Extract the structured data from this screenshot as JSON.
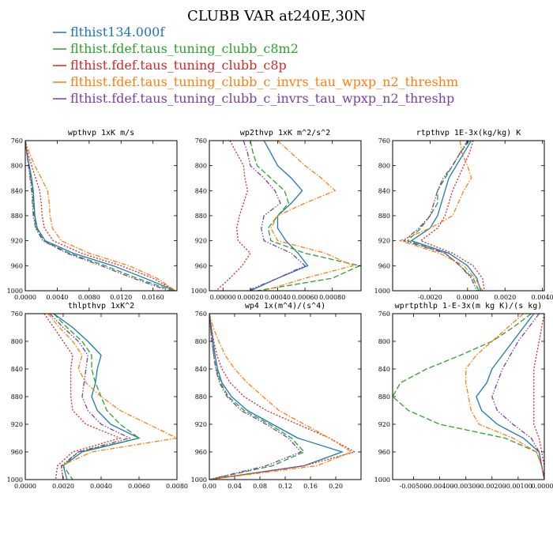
{
  "figure": {
    "title": "CLUBB VAR at240E,30N",
    "legend": [
      {
        "name": "flthist134.000f",
        "color": "#1f77b4",
        "dash": "solid"
      },
      {
        "name": "flthist.fdef.taus_tuning_clubb_c8m2",
        "color": "#2ca02c",
        "dash": "longdash"
      },
      {
        "name": "flthist.fdef.taus_tuning_clubb_c8p",
        "color": "#d62728",
        "dash": "dot"
      },
      {
        "name": "flthist.fdef.taus_tuning_clubb_c_invrs_tau_wpxp_n2_threshm",
        "color": "#ff7f0e",
        "dash": "dashdot"
      },
      {
        "name": "flthist.fdef.taus_tuning_clubb_c_invrs_tau_wpxp_n2_threshp",
        "color": "#7b3fa0",
        "dash": "dashdotdot"
      }
    ]
  },
  "chart_data": [
    {
      "type": "line",
      "title": "wpthvp 1xK m/s",
      "y_axis": "pressure",
      "ylim": [
        1000,
        760
      ],
      "yticks": [
        760,
        800,
        840,
        880,
        920,
        960,
        1000
      ],
      "xlim": [
        0,
        0.019
      ],
      "xticks": [
        0,
        0.004,
        0.008,
        0.012,
        0.016
      ],
      "xtick_labels": [
        "0.0000",
        "0.0040",
        "0.0080",
        "0.0120",
        "0.0160"
      ],
      "y": [
        760,
        780,
        800,
        820,
        840,
        860,
        880,
        900,
        920,
        940,
        960,
        980,
        1000
      ],
      "series": [
        {
          "name": "flthist134.000f",
          "values": [
            0.0,
            0.0002,
            0.0005,
            0.0008,
            0.001,
            0.0011,
            0.0012,
            0.0015,
            0.0025,
            0.006,
            0.011,
            0.015,
            0.0188
          ]
        },
        {
          "name": "flthist.fdef.taus_tuning_clubb_c8m2",
          "values": [
            0.0,
            0.0002,
            0.0004,
            0.0007,
            0.0009,
            0.001,
            0.0011,
            0.0014,
            0.0023,
            0.0055,
            0.01,
            0.014,
            0.0185
          ]
        },
        {
          "name": "flthist.fdef.taus_tuning_clubb_c8p",
          "values": [
            0.0,
            0.0003,
            0.0008,
            0.0013,
            0.0018,
            0.002,
            0.0021,
            0.0024,
            0.0035,
            0.007,
            0.012,
            0.016,
            0.0188
          ]
        },
        {
          "name": "flthist.fdef.taus_tuning_clubb_c_invrs_tau_wpxp_n2_threshm",
          "values": [
            0.0,
            0.0005,
            0.0012,
            0.002,
            0.0028,
            0.003,
            0.0031,
            0.0034,
            0.0045,
            0.008,
            0.013,
            0.0165,
            0.0188
          ]
        },
        {
          "name": "flthist.fdef.taus_tuning_clubb_c_invrs_tau_wpxp_n2_threshp",
          "values": [
            0.0,
            0.0002,
            0.0004,
            0.0006,
            0.0008,
            0.0009,
            0.001,
            0.0013,
            0.0022,
            0.0052,
            0.0095,
            0.0135,
            0.018
          ]
        }
      ]
    },
    {
      "type": "line",
      "title": "wp2thvp 1xK m^2/s^2",
      "y_axis": "pressure",
      "ylim": [
        1000,
        760
      ],
      "yticks": [
        760,
        800,
        840,
        880,
        920,
        960,
        1000
      ],
      "xlim": [
        -0.0001,
        0.00101
      ],
      "xticks": [
        0,
        0.0002,
        0.0004,
        0.0006,
        0.0008
      ],
      "xtick_labels": [
        "0.00000",
        "0.00020",
        "0.00040",
        "0.00060",
        "0.00080"
      ],
      "y": [
        760,
        780,
        800,
        820,
        840,
        860,
        880,
        900,
        920,
        940,
        960,
        980,
        1000
      ],
      "series": [
        {
          "name": "flthist134.000f",
          "values": [
            0.0003,
            0.00035,
            0.0004,
            0.0005,
            0.00058,
            0.0005,
            0.0004,
            0.0004,
            0.00046,
            0.00055,
            0.00062,
            0.0004,
            0.0002
          ]
        },
        {
          "name": "flthist.fdef.taus_tuning_clubb_c8m2",
          "values": [
            0.0002,
            0.00022,
            0.00025,
            0.00035,
            0.00045,
            0.00048,
            0.0004,
            0.00033,
            0.00035,
            0.0006,
            0.001,
            0.0008,
            0.00025
          ]
        },
        {
          "name": "flthist.fdef.taus_tuning_clubb_c8p",
          "values": [
            5e-05,
            0.0001,
            0.00015,
            0.00016,
            0.00018,
            0.00015,
            0.00012,
            0.0001,
            0.00011,
            0.0002,
            0.00014,
            5e-05,
            -5e-05
          ]
        },
        {
          "name": "flthist.fdef.taus_tuning_clubb_c_invrs_tau_wpxp_n2_threshm",
          "values": [
            0.0004,
            0.0005,
            0.0006,
            0.00072,
            0.00082,
            0.0006,
            0.0004,
            0.00035,
            0.0004,
            0.00075,
            0.00095,
            0.0006,
            0.0003
          ]
        },
        {
          "name": "flthist.fdef.taus_tuning_clubb_c_invrs_tau_wpxp_n2_threshp",
          "values": [
            0.00015,
            0.00018,
            0.0002,
            0.0003,
            0.00038,
            0.00042,
            0.0003,
            0.00028,
            0.0003,
            0.0005,
            0.0006,
            0.0004,
            0.00018
          ]
        }
      ]
    },
    {
      "type": "line",
      "title": "rtpthvp 1E-3x(kg/kg) K",
      "y_axis": "pressure",
      "ylim": [
        1000,
        760
      ],
      "yticks": [
        760,
        800,
        840,
        880,
        920,
        960,
        1000
      ],
      "xlim": [
        -0.004,
        0.0041
      ],
      "xticks": [
        -0.002,
        0,
        0.002,
        0.004
      ],
      "xtick_labels": [
        "-0.0020",
        "0.0000",
        "0.0020",
        "0.0040"
      ],
      "y": [
        760,
        780,
        800,
        820,
        840,
        860,
        880,
        900,
        920,
        940,
        960,
        980,
        1000
      ],
      "series": [
        {
          "name": "flthist134.000f",
          "values": [
            0.0002,
            -0.0002,
            -0.0006,
            -0.001,
            -0.0012,
            -0.0014,
            -0.0016,
            -0.002,
            -0.003,
            -0.001,
            0.0,
            0.0005,
            0.0007
          ]
        },
        {
          "name": "flthist.fdef.taus_tuning_clubb_c8m2",
          "values": [
            0.0001,
            -0.0004,
            -0.0008,
            -0.0012,
            -0.0016,
            -0.0016,
            -0.002,
            -0.0025,
            -0.0032,
            -0.0012,
            -0.0004,
            0.0003,
            0.0006
          ]
        },
        {
          "name": "flthist.fdef.taus_tuning_clubb_c8p",
          "values": [
            0.0003,
            0.0001,
            -0.0002,
            -0.0005,
            -0.0008,
            -0.001,
            -0.0012,
            -0.0016,
            -0.0025,
            -0.0008,
            0.0003,
            0.0008,
            0.0009
          ]
        },
        {
          "name": "flthist.fdef.taus_tuning_clubb_c_invrs_tau_wpxp_n2_threshm",
          "values": [
            -0.0004,
            -0.0003,
            0.0,
            0.0002,
            -0.0002,
            -0.0005,
            -0.0008,
            -0.002,
            -0.0036,
            -0.0015,
            -0.0002,
            0.0004,
            0.0008
          ]
        },
        {
          "name": "flthist.fdef.taus_tuning_clubb_c_invrs_tau_wpxp_n2_threshp",
          "values": [
            0.0,
            -0.0004,
            -0.0008,
            -0.0013,
            -0.0016,
            -0.0018,
            -0.002,
            -0.0026,
            -0.0034,
            -0.0012,
            -0.0004,
            0.0002,
            0.0005
          ]
        }
      ]
    },
    {
      "type": "line",
      "title": "thlpthvp 1xK^2",
      "y_axis": "pressure",
      "ylim": [
        1000,
        760
      ],
      "yticks": [
        760,
        800,
        840,
        880,
        920,
        960,
        1000
      ],
      "xlim": [
        0,
        0.008
      ],
      "xticks": [
        0,
        0.002,
        0.004,
        0.006,
        0.008
      ],
      "xtick_labels": [
        "0.0000",
        "0.0020",
        "0.0040",
        "0.0060",
        "0.0080"
      ],
      "y": [
        760,
        780,
        800,
        820,
        840,
        860,
        880,
        900,
        920,
        940,
        960,
        980,
        1000
      ],
      "series": [
        {
          "name": "flthist134.000f",
          "values": [
            0.0015,
            0.0025,
            0.0033,
            0.004,
            0.0038,
            0.0037,
            0.0035,
            0.0038,
            0.0045,
            0.006,
            0.003,
            0.002,
            0.0022
          ]
        },
        {
          "name": "flthist.fdef.taus_tuning_clubb_c8m2",
          "values": [
            0.0015,
            0.0022,
            0.003,
            0.0035,
            0.0035,
            0.0037,
            0.004,
            0.0043,
            0.005,
            0.006,
            0.0028,
            0.002,
            0.0025
          ]
        },
        {
          "name": "flthist.fdef.taus_tuning_clubb_c8p",
          "values": [
            0.001,
            0.0015,
            0.002,
            0.0025,
            0.0024,
            0.0024,
            0.0024,
            0.0025,
            0.0032,
            0.005,
            0.0025,
            0.0017,
            0.0016
          ]
        },
        {
          "name": "flthist.fdef.taus_tuning_clubb_c_invrs_tau_wpxp_n2_threshm",
          "values": [
            0.0012,
            0.0018,
            0.0025,
            0.003,
            0.0028,
            0.0032,
            0.004,
            0.005,
            0.0065,
            0.008,
            0.0035,
            0.0019,
            0.002
          ]
        },
        {
          "name": "flthist.fdef.taus_tuning_clubb_c_invrs_tau_wpxp_n2_threshp",
          "values": [
            0.0013,
            0.002,
            0.0028,
            0.0033,
            0.0032,
            0.0031,
            0.003,
            0.0033,
            0.004,
            0.0055,
            0.0028,
            0.0019,
            0.002
          ]
        }
      ]
    },
    {
      "type": "line",
      "title": "wp4 1x(m^4)/(s^4)",
      "y_axis": "pressure",
      "ylim": [
        1000,
        760
      ],
      "yticks": [
        760,
        800,
        840,
        880,
        920,
        960,
        1000
      ],
      "xlim": [
        0,
        0.24
      ],
      "xticks": [
        0,
        0.04,
        0.08,
        0.12,
        0.16,
        0.2
      ],
      "xtick_labels": [
        "0.00",
        "0.04",
        "0.08",
        "0.12",
        "0.16",
        "0.20"
      ],
      "y": [
        760,
        780,
        800,
        820,
        840,
        860,
        880,
        900,
        920,
        940,
        960,
        980,
        1000
      ],
      "series": [
        {
          "name": "flthist134.000f",
          "values": [
            0.0,
            0.003,
            0.006,
            0.009,
            0.013,
            0.02,
            0.035,
            0.06,
            0.1,
            0.14,
            0.21,
            0.15,
            0.0
          ]
        },
        {
          "name": "flthist.fdef.taus_tuning_clubb_c8m2",
          "values": [
            0.0,
            0.002,
            0.004,
            0.007,
            0.011,
            0.018,
            0.03,
            0.055,
            0.095,
            0.13,
            0.15,
            0.1,
            0.0
          ]
        },
        {
          "name": "flthist.fdef.taus_tuning_clubb_c8p",
          "values": [
            0.0,
            0.003,
            0.007,
            0.012,
            0.02,
            0.033,
            0.055,
            0.09,
            0.14,
            0.19,
            0.23,
            0.15,
            0.0
          ]
        },
        {
          "name": "flthist.fdef.taus_tuning_clubb_c_invrs_tau_wpxp_n2_threshm",
          "values": [
            0.0,
            0.006,
            0.015,
            0.025,
            0.04,
            0.06,
            0.085,
            0.11,
            0.15,
            0.19,
            0.225,
            0.17,
            0.0
          ]
        },
        {
          "name": "flthist.fdef.taus_tuning_clubb_c_invrs_tau_wpxp_n2_threshp",
          "values": [
            0.0,
            0.002,
            0.004,
            0.007,
            0.01,
            0.016,
            0.028,
            0.05,
            0.09,
            0.125,
            0.145,
            0.09,
            0.0
          ]
        }
      ]
    },
    {
      "type": "line",
      "title": "wprtpthlp 1-E-3x(m kg K)/(s kg)",
      "y_axis": "pressure",
      "ylim": [
        1000,
        760
      ],
      "yticks": [
        760,
        800,
        840,
        880,
        920,
        960,
        1000
      ],
      "xlim": [
        -0.0058,
        0
      ],
      "xticks": [
        -0.005,
        -0.004,
        -0.003,
        -0.002,
        -0.001,
        0
      ],
      "xtick_labels": [
        "-0.00500",
        "-0.00400",
        "-0.00300",
        "-0.00200",
        "-0.00100",
        "0.00000"
      ],
      "y": [
        760,
        780,
        800,
        820,
        840,
        860,
        880,
        900,
        920,
        940,
        960,
        980,
        1000
      ],
      "series": [
        {
          "name": "flthist134.000f",
          "values": [
            -0.0004,
            -0.0008,
            -0.0012,
            -0.0016,
            -0.002,
            -0.0022,
            -0.0026,
            -0.0024,
            -0.0018,
            -0.0008,
            -0.0002,
            -0.0001,
            0.0
          ]
        },
        {
          "name": "flthist.fdef.taus_tuning_clubb_c8m2",
          "values": [
            -0.0005,
            -0.0012,
            -0.002,
            -0.0032,
            -0.0045,
            -0.0055,
            -0.0058,
            -0.0052,
            -0.004,
            -0.0015,
            -0.0003,
            -0.0001,
            0.0
          ]
        },
        {
          "name": "flthist.fdef.taus_tuning_clubb_c8p",
          "values": [
            0.0,
            -0.0001,
            -0.0002,
            -0.0003,
            -0.0004,
            -0.0004,
            -0.0004,
            -0.0004,
            -0.0004,
            -0.0002,
            -0.0001,
            0.0,
            0.0
          ]
        },
        {
          "name": "flthist.fdef.taus_tuning_clubb_c_invrs_tau_wpxp_n2_threshm",
          "values": [
            -0.0008,
            -0.0014,
            -0.002,
            -0.0026,
            -0.003,
            -0.003,
            -0.0029,
            -0.0028,
            -0.0025,
            -0.0012,
            -0.0003,
            -0.0001,
            0.0
          ]
        },
        {
          "name": "flthist.fdef.taus_tuning_clubb_c_invrs_tau_wpxp_n2_threshp",
          "values": [
            -0.0002,
            -0.0006,
            -0.001,
            -0.0013,
            -0.0016,
            -0.0018,
            -0.002,
            -0.0018,
            -0.0012,
            -0.0005,
            -0.0002,
            -0.0001,
            0.0
          ]
        }
      ]
    }
  ]
}
